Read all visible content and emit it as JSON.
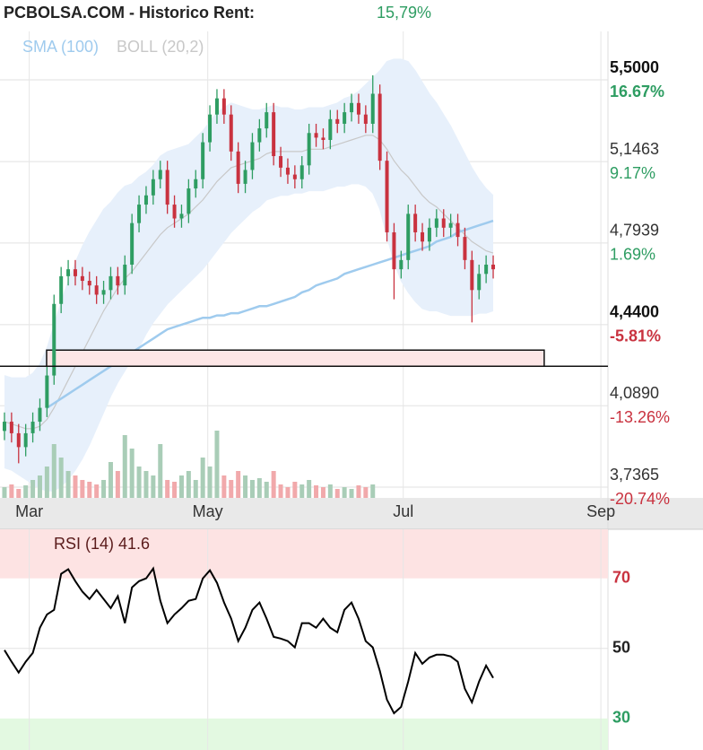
{
  "chart_data": [
    {
      "type": "candlestick",
      "title": "PCBOLSA.COM - Historico  Rent:",
      "rent": "15,79%",
      "rent_color": "#2e9d62",
      "xlim": [
        -0.63,
        85.2
      ],
      "xticks": [
        {
          "value": 3.5,
          "label": "Mar"
        },
        {
          "value": 28.7,
          "label": "May"
        },
        {
          "value": 56.3,
          "label": "Jul"
        },
        {
          "value": 84.2,
          "label": "Sep"
        }
      ],
      "ylim": [
        3.69,
        5.71
      ],
      "yticks": [
        {
          "value": 5.5,
          "label": "5,5000",
          "change": "16.67%"
        },
        {
          "value": 5.1463,
          "label": "5,1463",
          "change": "9.17%"
        },
        {
          "value": 4.7939,
          "label": "4,7939",
          "change": "1.69%"
        },
        {
          "value": 4.44,
          "label": "4,4400",
          "change": "-5.81%"
        },
        {
          "value": 4.089,
          "label": "4,0890",
          "change": "-13.26%"
        },
        {
          "value": 3.7365,
          "label": "3,7365",
          "change": "-20.74%"
        }
      ],
      "grid": true,
      "up_color": "#2e9d62",
      "down_color": "#c9323f",
      "open": [
        3.98,
        4.02,
        3.97,
        3.91,
        3.97,
        4.02,
        4.08,
        4.22,
        4.53,
        4.65,
        4.68,
        4.65,
        4.63,
        4.61,
        4.57,
        4.59,
        4.65,
        4.61,
        4.7,
        4.88,
        4.96,
        5.0,
        5.07,
        5.11,
        4.96,
        4.9,
        4.92,
        5.03,
        5.07,
        5.23,
        5.35,
        5.42,
        5.35,
        5.19,
        5.05,
        5.11,
        5.23,
        5.29,
        5.36,
        5.17,
        5.12,
        5.09,
        5.07,
        5.13,
        5.27,
        5.25,
        5.24,
        5.33,
        5.31,
        5.36,
        5.4,
        5.35,
        5.31,
        5.44,
        5.15,
        4.84,
        4.68,
        4.72,
        4.92,
        4.84,
        4.8,
        4.86,
        4.9,
        4.86,
        4.88,
        4.82,
        4.72,
        4.59,
        4.66,
        4.7
      ],
      "high": [
        4.06,
        4.06,
        4.01,
        4.01,
        4.06,
        4.12,
        4.26,
        4.57,
        4.69,
        4.72,
        4.72,
        4.69,
        4.67,
        4.65,
        4.63,
        4.69,
        4.69,
        4.74,
        4.92,
        5.0,
        5.04,
        5.11,
        5.15,
        5.15,
        5.0,
        4.96,
        5.07,
        5.11,
        5.27,
        5.39,
        5.46,
        5.46,
        5.39,
        5.23,
        5.15,
        5.27,
        5.33,
        5.4,
        5.4,
        5.21,
        5.16,
        5.13,
        5.17,
        5.31,
        5.31,
        5.29,
        5.37,
        5.37,
        5.4,
        5.44,
        5.44,
        5.39,
        5.52,
        5.48,
        5.19,
        4.88,
        4.76,
        4.96,
        4.96,
        4.88,
        4.9,
        4.94,
        4.94,
        4.92,
        4.92,
        4.86,
        4.76,
        4.7,
        4.74,
        4.74
      ],
      "low": [
        3.94,
        3.93,
        3.84,
        3.87,
        3.93,
        3.98,
        4.04,
        4.18,
        4.49,
        4.61,
        4.61,
        4.59,
        4.57,
        4.53,
        4.53,
        4.55,
        4.57,
        4.57,
        4.66,
        4.84,
        4.92,
        4.96,
        5.03,
        4.92,
        4.86,
        4.86,
        4.88,
        4.99,
        5.03,
        5.19,
        5.31,
        5.31,
        5.15,
        5.01,
        5.01,
        5.07,
        5.19,
        5.25,
        5.13,
        5.08,
        5.05,
        5.03,
        5.03,
        5.09,
        5.21,
        5.2,
        5.2,
        5.27,
        5.27,
        5.32,
        5.31,
        5.27,
        5.27,
        5.11,
        4.8,
        4.55,
        4.64,
        4.68,
        4.8,
        4.76,
        4.76,
        4.82,
        4.82,
        4.82,
        4.78,
        4.68,
        4.45,
        4.55,
        4.62,
        4.64
      ],
      "close": [
        4.02,
        3.97,
        3.91,
        3.97,
        4.02,
        4.08,
        4.22,
        4.53,
        4.65,
        4.68,
        4.65,
        4.63,
        4.61,
        4.57,
        4.59,
        4.65,
        4.61,
        4.7,
        4.88,
        4.96,
        5.0,
        5.07,
        5.11,
        4.96,
        4.9,
        4.92,
        5.03,
        5.07,
        5.23,
        5.35,
        5.42,
        5.35,
        5.19,
        5.05,
        5.11,
        5.23,
        5.29,
        5.36,
        5.17,
        5.12,
        5.09,
        5.07,
        5.13,
        5.27,
        5.25,
        5.24,
        5.33,
        5.31,
        5.36,
        5.4,
        5.35,
        5.31,
        5.44,
        5.15,
        4.84,
        4.68,
        4.72,
        4.92,
        4.84,
        4.8,
        4.86,
        4.9,
        4.86,
        4.88,
        4.82,
        4.72,
        4.59,
        4.66,
        4.7,
        4.68
      ],
      "volume": [
        12,
        15,
        10,
        14,
        20,
        25,
        35,
        60,
        45,
        30,
        25,
        20,
        18,
        15,
        20,
        40,
        30,
        70,
        55,
        35,
        30,
        25,
        60,
        20,
        18,
        25,
        30,
        20,
        45,
        35,
        75,
        25,
        20,
        30,
        25,
        20,
        22,
        18,
        30,
        15,
        12,
        18,
        15,
        20,
        14,
        12,
        15,
        10,
        12,
        10,
        14,
        12,
        15,
        null,
        null,
        null,
        null,
        null,
        null,
        null,
        null,
        null,
        null,
        null,
        null,
        null,
        null,
        null,
        null,
        null
      ],
      "volume_up_color": "#a9cdb7",
      "volume_down_color": "#f1a9ab",
      "series": [
        {
          "name": "SMA (100)",
          "color": "#9fcbee",
          "values": [
            null,
            null,
            null,
            null,
            null,
            null,
            4.08,
            4.1,
            4.12,
            4.14,
            4.16,
            4.18,
            4.2,
            4.22,
            4.24,
            4.26,
            4.28,
            4.3,
            4.32,
            4.34,
            4.36,
            4.38,
            4.4,
            4.42,
            4.43,
            4.44,
            4.45,
            4.46,
            4.47,
            4.47,
            4.48,
            4.48,
            4.49,
            4.49,
            4.5,
            4.51,
            4.52,
            4.52,
            4.53,
            4.54,
            4.55,
            4.56,
            4.58,
            4.59,
            4.61,
            4.62,
            4.63,
            4.64,
            4.66,
            4.67,
            4.68,
            4.69,
            4.7,
            4.71,
            4.72,
            4.73,
            4.74,
            4.75,
            4.76,
            4.77,
            4.78,
            4.8,
            4.81,
            4.82,
            4.84,
            4.85,
            4.86,
            4.87,
            4.88,
            4.89
          ]
        },
        {
          "name": "BOLL (20,2)",
          "color": "#c8c8c8",
          "fill": "#e7f0fb",
          "values": [
            4.02,
            4.01,
            4.0,
            3.99,
            3.99,
            4.0,
            4.03,
            4.08,
            4.14,
            4.2,
            4.26,
            4.32,
            4.38,
            4.44,
            4.5,
            4.55,
            4.6,
            4.64,
            4.67,
            4.71,
            4.75,
            4.79,
            4.83,
            4.86,
            4.88,
            4.9,
            4.92,
            4.95,
            4.98,
            5.02,
            5.06,
            5.09,
            5.12,
            5.13,
            5.14,
            5.15,
            5.16,
            5.18,
            5.19,
            5.19,
            5.19,
            5.19,
            5.19,
            5.2,
            5.2,
            5.2,
            5.21,
            5.22,
            5.23,
            5.24,
            5.25,
            5.26,
            5.26,
            5.24,
            5.2,
            5.15,
            5.11,
            5.08,
            5.04,
            5.0,
            4.97,
            4.95,
            4.92,
            4.89,
            4.86,
            4.83,
            4.8,
            4.78,
            4.76,
            4.75
          ],
          "upper": [
            4.22,
            4.21,
            4.21,
            4.21,
            4.23,
            4.27,
            4.34,
            4.44,
            4.54,
            4.63,
            4.71,
            4.78,
            4.84,
            4.89,
            4.94,
            4.97,
            5.01,
            5.04,
            5.05,
            5.08,
            5.1,
            5.13,
            5.17,
            5.19,
            5.2,
            5.21,
            5.22,
            5.25,
            5.28,
            5.32,
            5.36,
            5.38,
            5.4,
            5.39,
            5.38,
            5.37,
            5.37,
            5.38,
            5.39,
            5.38,
            5.38,
            5.37,
            5.37,
            5.38,
            5.38,
            5.38,
            5.39,
            5.4,
            5.42,
            5.43,
            5.45,
            5.48,
            5.51,
            5.54,
            5.58,
            5.59,
            5.59,
            5.58,
            5.54,
            5.49,
            5.44,
            5.4,
            5.35,
            5.3,
            5.24,
            5.18,
            5.12,
            5.07,
            5.03,
            5.0
          ],
          "lower": [
            3.82,
            3.81,
            3.79,
            3.77,
            3.75,
            3.73,
            3.72,
            3.72,
            3.74,
            3.77,
            3.81,
            3.86,
            3.92,
            3.99,
            4.06,
            4.13,
            4.19,
            4.24,
            4.29,
            4.34,
            4.4,
            4.45,
            4.49,
            4.53,
            4.56,
            4.59,
            4.62,
            4.65,
            4.68,
            4.72,
            4.76,
            4.8,
            4.84,
            4.87,
            4.9,
            4.93,
            4.95,
            4.98,
            4.99,
            5.0,
            5.0,
            5.01,
            5.01,
            5.02,
            5.02,
            5.02,
            5.03,
            5.04,
            5.04,
            5.05,
            5.05,
            5.04,
            5.01,
            4.94,
            4.82,
            4.71,
            4.63,
            4.58,
            4.54,
            4.51,
            4.5,
            4.5,
            4.49,
            4.48,
            4.48,
            4.48,
            4.48,
            4.49,
            4.49,
            4.5
          ]
        }
      ],
      "support_zone": {
        "ylim": [
          4.26,
          4.33
        ],
        "xlim": [
          5.95,
          76.2
        ],
        "color": "#fde6e6"
      },
      "support_line": 4.26
    },
    {
      "type": "line",
      "title": "RSI (14) 41.6",
      "color": "#000000",
      "ylim": [
        21,
        84
      ],
      "yticks": [
        70,
        50,
        30
      ],
      "overbought": 70,
      "oversold": 30,
      "overbought_color": "#fde3e3",
      "oversold_color": "#e3f9e1",
      "values": [
        49.5,
        46.2,
        43.1,
        46.2,
        48.7,
        55.9,
        59.7,
        61.0,
        71.3,
        72.6,
        69.2,
        66.2,
        64.1,
        66.7,
        64.1,
        61.5,
        64.9,
        57.2,
        67.4,
        69.2,
        70.0,
        72.8,
        63.6,
        57.2,
        59.7,
        61.5,
        63.6,
        64.1,
        70.0,
        72.3,
        68.7,
        63.1,
        58.5,
        52.1,
        55.9,
        61.0,
        63.1,
        58.5,
        53.3,
        52.8,
        52.1,
        50.3,
        57.2,
        57.2,
        55.9,
        58.5,
        55.9,
        54.6,
        61.0,
        63.1,
        58.5,
        52.1,
        50.3,
        43.6,
        35.4,
        31.5,
        33.3,
        40.5,
        48.7,
        45.6,
        47.4,
        48.2,
        48.2,
        47.7,
        46.2,
        38.5,
        34.6,
        40.5,
        45.1,
        41.6
      ]
    }
  ]
}
